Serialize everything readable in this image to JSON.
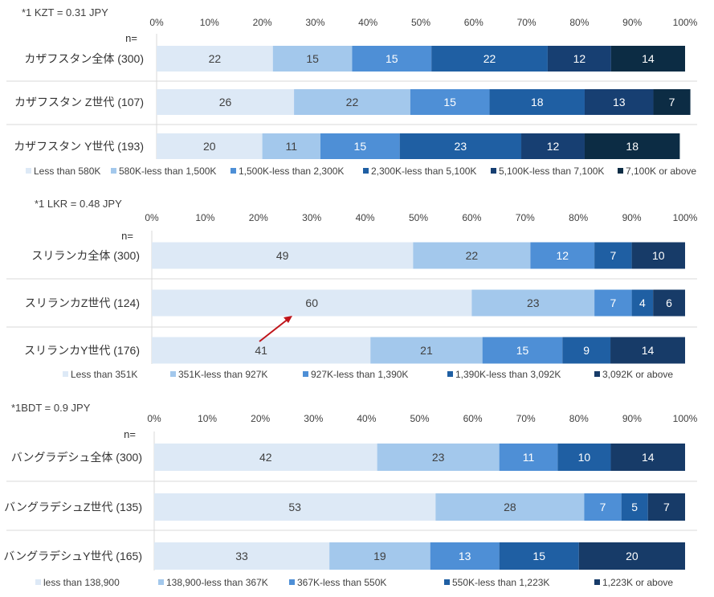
{
  "chart_data": [
    {
      "type": "bar",
      "orientation": "horizontal",
      "stacked": true,
      "note": "*1 KZT = 0.31 JPY",
      "n_label": "n=",
      "xlim": [
        0,
        100
      ],
      "ticks": [
        "0%",
        "10%",
        "20%",
        "30%",
        "40%",
        "50%",
        "60%",
        "70%",
        "80%",
        "90%",
        "100%"
      ],
      "categories": [
        "カザフスタン全体 (300)",
        "カザフスタン Z世代 (107)",
        "カザフスタン Y世代 (193)"
      ],
      "series": [
        {
          "name": "Less than 580K",
          "color": "#dde9f6",
          "values": [
            22,
            26,
            20
          ]
        },
        {
          "name": "580K-less than 1,500K",
          "color": "#a3c8ec",
          "values": [
            15,
            22,
            11
          ]
        },
        {
          "name": "1,500K-less than 2,300K",
          "color": "#4e8fd6",
          "values": [
            15,
            15,
            15
          ]
        },
        {
          "name": "2,300K-less than 5,100K",
          "color": "#1f5fa3",
          "values": [
            22,
            18,
            23
          ]
        },
        {
          "name": "5,100K-less than 7,100K",
          "color": "#173f72",
          "values": [
            12,
            13,
            12
          ]
        },
        {
          "name": "7,100K or above",
          "color": "#0c2c44",
          "values": [
            14,
            7,
            18
          ]
        }
      ]
    },
    {
      "type": "bar",
      "orientation": "horizontal",
      "stacked": true,
      "note": "*1 LKR = 0.48 JPY",
      "n_label": "n=",
      "xlim": [
        0,
        100
      ],
      "ticks": [
        "0%",
        "10%",
        "20%",
        "30%",
        "40%",
        "50%",
        "60%",
        "70%",
        "80%",
        "90%",
        "100%"
      ],
      "categories": [
        "スリランカ全体 (300)",
        "スリランカZ世代 (124)",
        "スリランカY世代 (176)"
      ],
      "series": [
        {
          "name": "Less than 351K",
          "color": "#dde9f6",
          "values": [
            49,
            60,
            41
          ]
        },
        {
          "name": "351K-less than 927K",
          "color": "#a3c8ec",
          "values": [
            22,
            23,
            21
          ]
        },
        {
          "name": "927K-less than 1,390K",
          "color": "#4e8fd6",
          "values": [
            12,
            7,
            15
          ]
        },
        {
          "name": "1,390K-less than 3,092K",
          "color": "#1f5fa3",
          "values": [
            7,
            4,
            9
          ]
        },
        {
          "name": "3,092K or above",
          "color": "#173b68",
          "values": [
            10,
            6,
            14
          ]
        }
      ],
      "annotation": {
        "type": "arrow",
        "color": "#c0141a",
        "from": "スリランカY世代 (176)",
        "to": "スリランカZ世代 (124)"
      }
    },
    {
      "type": "bar",
      "orientation": "horizontal",
      "stacked": true,
      "note": "*1BDT = 0.9 JPY",
      "n_label": "n=",
      "xlim": [
        0,
        100
      ],
      "ticks": [
        "0%",
        "10%",
        "20%",
        "30%",
        "40%",
        "50%",
        "60%",
        "70%",
        "80%",
        "90%",
        "100%"
      ],
      "categories": [
        "バングラデシュ全体 (300)",
        "バングラデシュZ世代 (135)",
        "バングラデシュY世代 (165)"
      ],
      "series": [
        {
          "name": "less than 138,900",
          "color": "#dde9f6",
          "values": [
            42,
            53,
            33
          ]
        },
        {
          "name": "138,900-less than 367K",
          "color": "#a3c8ec",
          "values": [
            23,
            28,
            19
          ]
        },
        {
          "name": "367K-less than 550K",
          "color": "#4e8fd6",
          "values": [
            11,
            7,
            13
          ]
        },
        {
          "name": "550K-less than 1,223K",
          "color": "#1f5fa3",
          "values": [
            10,
            5,
            15
          ]
        },
        {
          "name": "1,223K or above",
          "color": "#173b68",
          "values": [
            14,
            7,
            20
          ]
        }
      ]
    }
  ]
}
